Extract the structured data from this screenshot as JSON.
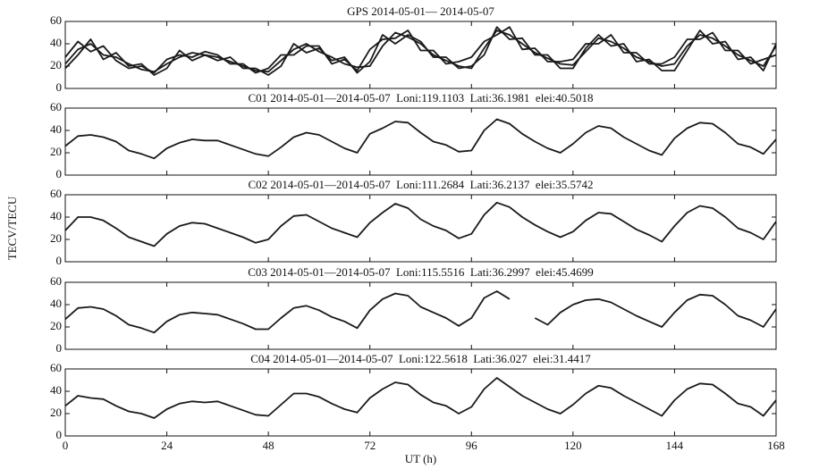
{
  "chart_data": [
    {
      "type": "line",
      "title": "GPS 2014-05-01— 2014-05-07",
      "x": [
        0,
        3,
        6,
        9,
        12,
        15,
        18,
        21,
        24,
        27,
        30,
        33,
        36,
        39,
        42,
        45,
        48,
        51,
        54,
        57,
        60,
        63,
        66,
        69,
        72,
        75,
        78,
        81,
        84,
        87,
        90,
        93,
        96,
        99,
        102,
        105,
        108,
        111,
        114,
        117,
        120,
        123,
        126,
        129,
        132,
        135,
        138,
        141,
        144,
        147,
        150,
        153,
        156,
        159,
        162,
        165,
        168
      ],
      "series": [
        {
          "color": "#1a1a1a",
          "values": [
            22,
            35,
            40,
            30,
            28,
            22,
            17,
            15,
            22,
            28,
            32,
            30,
            28,
            24,
            20,
            16,
            15,
            25,
            35,
            40,
            33,
            28,
            22,
            19,
            20,
            38,
            50,
            46,
            40,
            30,
            25,
            20,
            18,
            36,
            52,
            48,
            40,
            32,
            27,
            22,
            21,
            33,
            45,
            42,
            36,
            28,
            24,
            20,
            22,
            38,
            48,
            45,
            38,
            30,
            25,
            20,
            38
          ]
        },
        {
          "color": "#1a1a1a",
          "values": [
            28,
            42,
            33,
            38,
            25,
            18,
            20,
            14,
            26,
            30,
            28,
            33,
            30,
            22,
            22,
            14,
            18,
            30,
            30,
            38,
            38,
            22,
            26,
            16,
            35,
            44,
            45,
            52,
            34,
            34,
            22,
            24,
            28,
            42,
            48,
            55,
            35,
            36,
            24,
            24,
            26,
            40,
            40,
            48,
            32,
            32,
            22,
            22,
            28,
            44,
            44,
            50,
            34,
            34,
            22,
            26,
            30
          ]
        },
        {
          "color": "#1a1a1a",
          "values": [
            18,
            30,
            44,
            26,
            32,
            20,
            22,
            12,
            18,
            34,
            25,
            30,
            25,
            28,
            18,
            18,
            12,
            20,
            40,
            32,
            36,
            25,
            28,
            14,
            24,
            48,
            40,
            48,
            42,
            28,
            28,
            18,
            20,
            30,
            55,
            44,
            45,
            30,
            30,
            18,
            18,
            36,
            48,
            38,
            40,
            24,
            26,
            16,
            16,
            34,
            52,
            40,
            42,
            26,
            28,
            16,
            40
          ]
        }
      ],
      "xlim": [
        0,
        168
      ],
      "ylim": [
        0,
        60
      ],
      "yticks": [
        0,
        20,
        40,
        60
      ]
    },
    {
      "type": "line",
      "title": "C01 2014-05-01—2014-05-07  Loni:119.1103  Lati:36.1981  elei:40.5018",
      "x": [
        0,
        3,
        6,
        9,
        12,
        15,
        18,
        21,
        24,
        27,
        30,
        33,
        36,
        39,
        42,
        45,
        48,
        51,
        54,
        57,
        60,
        63,
        66,
        69,
        72,
        75,
        78,
        81,
        84,
        87,
        90,
        93,
        96,
        99,
        102,
        105,
        108,
        111,
        114,
        117,
        120,
        123,
        126,
        129,
        132,
        135,
        138,
        141,
        144,
        147,
        150,
        153,
        156,
        159,
        162,
        165,
        168
      ],
      "values": [
        26,
        35,
        36,
        34,
        30,
        22,
        19,
        15,
        24,
        29,
        32,
        31,
        31,
        27,
        23,
        19,
        17,
        25,
        34,
        38,
        36,
        30,
        24,
        20,
        37,
        42,
        48,
        47,
        38,
        30,
        27,
        21,
        22,
        40,
        50,
        46,
        37,
        30,
        24,
        20,
        28,
        38,
        44,
        42,
        34,
        28,
        22,
        18,
        33,
        42,
        47,
        46,
        38,
        28,
        25,
        19,
        32
      ],
      "color": "#1a1a1a",
      "xlim": [
        0,
        168
      ],
      "ylim": [
        0,
        60
      ],
      "yticks": [
        0,
        20,
        40,
        60
      ]
    },
    {
      "type": "line",
      "title": "C02 2014-05-01—2014-05-07  Loni:111.2684  Lati:36.2137  elei:35.5742",
      "ylabel": "TECV/TECU",
      "x": [
        0,
        3,
        6,
        9,
        12,
        15,
        18,
        21,
        24,
        27,
        30,
        33,
        36,
        39,
        42,
        45,
        48,
        51,
        54,
        57,
        60,
        63,
        66,
        69,
        72,
        75,
        78,
        81,
        84,
        87,
        90,
        93,
        96,
        99,
        102,
        105,
        108,
        111,
        114,
        117,
        120,
        123,
        126,
        129,
        132,
        135,
        138,
        141,
        144,
        147,
        150,
        153,
        156,
        159,
        162,
        165,
        168
      ],
      "values": [
        28,
        40,
        40,
        37,
        30,
        22,
        18,
        14,
        25,
        32,
        35,
        34,
        30,
        26,
        22,
        17,
        20,
        32,
        41,
        42,
        36,
        30,
        26,
        22,
        35,
        44,
        52,
        48,
        38,
        32,
        28,
        21,
        25,
        42,
        53,
        49,
        40,
        33,
        27,
        22,
        27,
        37,
        44,
        43,
        36,
        29,
        24,
        18,
        32,
        44,
        50,
        48,
        40,
        30,
        26,
        20,
        36
      ],
      "color": "#1a1a1a",
      "xlim": [
        0,
        168
      ],
      "ylim": [
        0,
        60
      ],
      "yticks": [
        0,
        20,
        40,
        60
      ]
    },
    {
      "type": "line",
      "title": "C03 2014-05-01—2014-05-07  Loni:115.5516  Lati:36.2997  elei:45.4699",
      "x": [
        0,
        3,
        6,
        9,
        12,
        15,
        18,
        21,
        24,
        27,
        30,
        33,
        36,
        39,
        42,
        45,
        48,
        51,
        54,
        57,
        60,
        63,
        66,
        69,
        72,
        75,
        78,
        81,
        84,
        87,
        90,
        93,
        96,
        99,
        102,
        105,
        108,
        111,
        114,
        117,
        120,
        123,
        126,
        129,
        132,
        135,
        138,
        141,
        144,
        147,
        150,
        153,
        156,
        159,
        162,
        165,
        168
      ],
      "values": [
        27,
        37,
        38,
        36,
        30,
        22,
        19,
        15,
        25,
        31,
        33,
        32,
        31,
        27,
        23,
        18,
        18,
        28,
        37,
        39,
        35,
        29,
        25,
        19,
        35,
        45,
        50,
        48,
        38,
        33,
        28,
        21,
        28,
        46,
        52,
        45,
        null,
        28,
        22,
        33,
        40,
        44,
        45,
        42,
        36,
        30,
        25,
        20,
        33,
        44,
        49,
        48,
        40,
        30,
        26,
        20,
        36
      ],
      "color": "#1a1a1a",
      "xlim": [
        0,
        168
      ],
      "ylim": [
        0,
        60
      ],
      "yticks": [
        0,
        20,
        40,
        60
      ]
    },
    {
      "type": "line",
      "title": "C04 2014-05-01—2014-05-07  Loni:122.5618  Lati:36.027  elei:31.4417",
      "xlabel": "UT (h)",
      "x": [
        0,
        3,
        6,
        9,
        12,
        15,
        18,
        21,
        24,
        27,
        30,
        33,
        36,
        39,
        42,
        45,
        48,
        51,
        54,
        57,
        60,
        63,
        66,
        69,
        72,
        75,
        78,
        81,
        84,
        87,
        90,
        93,
        96,
        99,
        102,
        105,
        108,
        111,
        114,
        117,
        120,
        123,
        126,
        129,
        132,
        135,
        138,
        141,
        144,
        147,
        150,
        153,
        156,
        159,
        162,
        165,
        168
      ],
      "values": [
        27,
        36,
        34,
        33,
        27,
        22,
        20,
        16,
        24,
        29,
        31,
        30,
        31,
        27,
        23,
        19,
        18,
        28,
        38,
        38,
        35,
        29,
        24,
        21,
        34,
        42,
        48,
        46,
        37,
        30,
        27,
        20,
        26,
        42,
        52,
        44,
        36,
        30,
        24,
        20,
        28,
        38,
        45,
        43,
        36,
        30,
        24,
        18,
        32,
        42,
        47,
        46,
        38,
        29,
        26,
        18,
        32
      ],
      "color": "#1a1a1a",
      "xlim": [
        0,
        168
      ],
      "ylim": [
        0,
        60
      ],
      "yticks": [
        0,
        20,
        40,
        60
      ],
      "xticks": [
        0,
        24,
        48,
        72,
        96,
        120,
        144,
        168
      ]
    }
  ]
}
